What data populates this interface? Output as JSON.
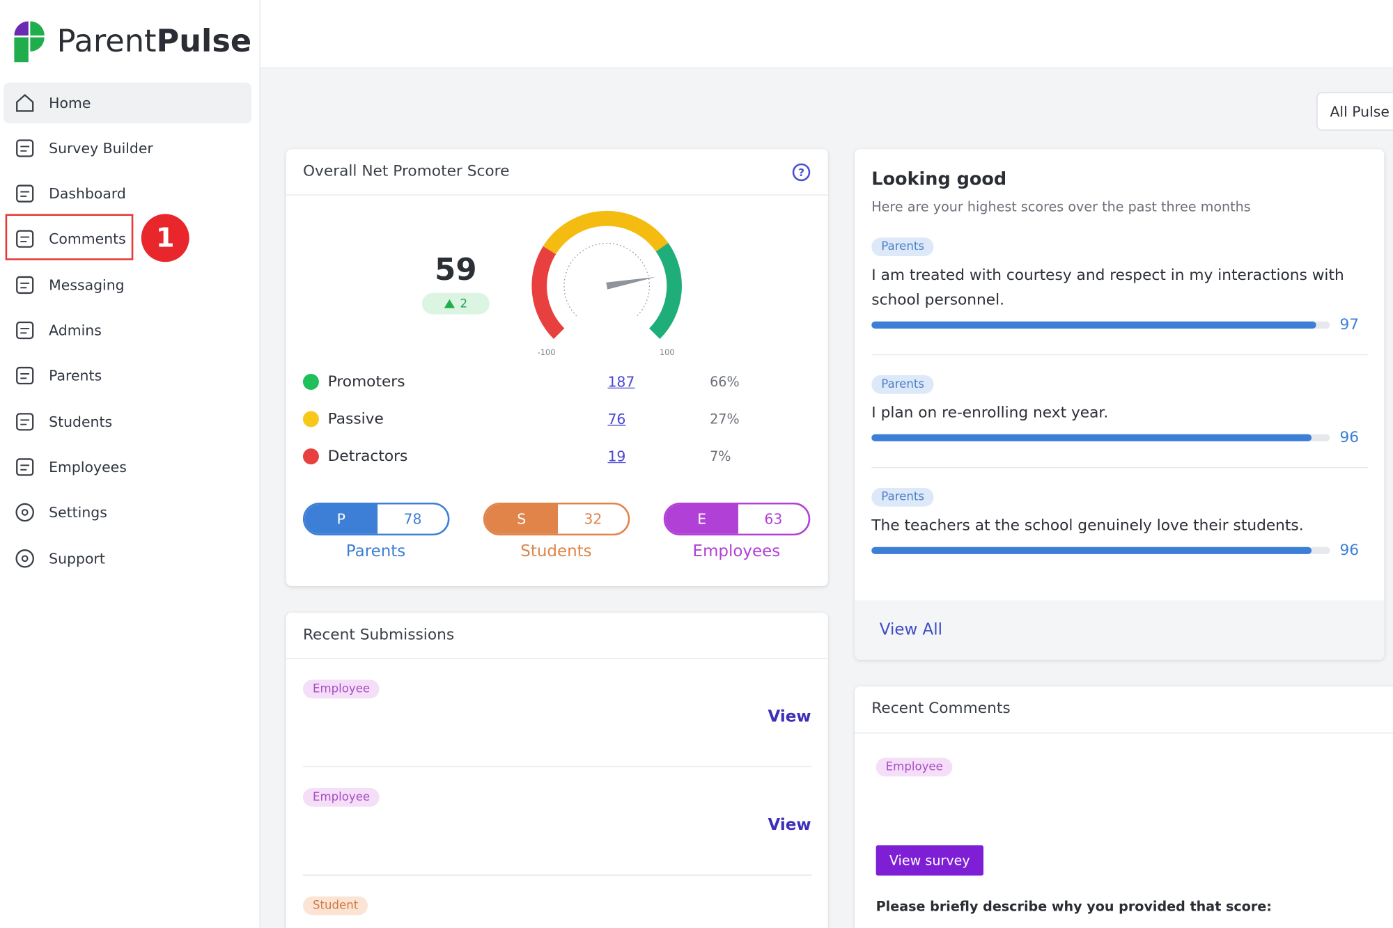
{
  "brand": {
    "first": "Parent",
    "second": "Pulse"
  },
  "nav": [
    "Home",
    "Survey Builder",
    "Dashboard",
    "Comments",
    "Messaging",
    "Admins",
    "Parents",
    "Students",
    "Employees",
    "Settings",
    "Support"
  ],
  "annotation": "1",
  "filter": "All Pulse",
  "nps": {
    "title": "Overall Net Promoter Score",
    "score": 59,
    "change": 2,
    "gauge_min": -100,
    "gauge_max": 100,
    "rows": [
      {
        "label": "Promoters",
        "count": "187",
        "percent": "66%"
      },
      {
        "label": "Passive",
        "count": "76",
        "percent": "27%"
      },
      {
        "label": "Detractors",
        "count": "19",
        "percent": "7%"
      }
    ],
    "groups": [
      {
        "letter": "P",
        "score": 78,
        "label": "Parents"
      },
      {
        "letter": "S",
        "score": 32,
        "label": "Students"
      },
      {
        "letter": "E",
        "score": 63,
        "label": "Employees"
      }
    ]
  },
  "looking_good": {
    "title": "Looking good",
    "subtitle": "Here are your highest scores over the past three months",
    "items": [
      {
        "tag": "Parents",
        "text": "I am treated with courtesy and respect in my interactions with school personnel.",
        "score": 97
      },
      {
        "tag": "Parents",
        "text": "I plan on re-enrolling next year.",
        "score": 96
      },
      {
        "tag": "Parents",
        "text": "The teachers at the school genuinely love their students.",
        "score": 96
      }
    ],
    "link": "View All"
  },
  "recent_submissions": {
    "title": "Recent Submissions",
    "items": [
      {
        "tag": "Employee",
        "action": "View"
      },
      {
        "tag": "Employee",
        "action": "View"
      },
      {
        "tag": "Student"
      }
    ]
  },
  "recent_comments": {
    "title": "Recent Comments",
    "tag": "Employee",
    "button": "View survey",
    "question": "Please briefly describe why you provided that score:"
  }
}
